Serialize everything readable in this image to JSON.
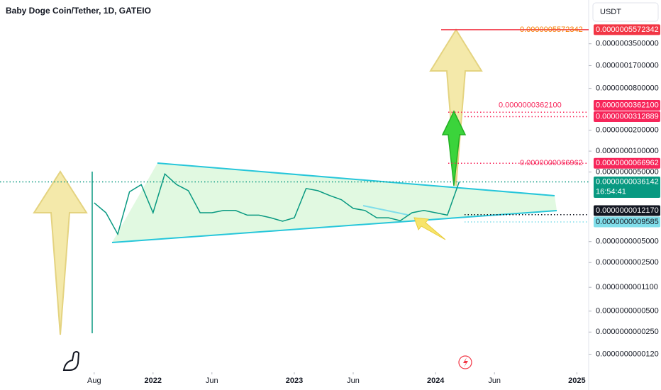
{
  "chart_data": {
    "type": "line",
    "title": "Baby Doge Coin/Tether, 1D, GATEIO",
    "currency": "USDT",
    "countdown": "16:54:41",
    "log_scale": true,
    "grid": false,
    "color": "#089981",
    "x": [
      "2021-08",
      "2021-09",
      "2021-10",
      "2021-11",
      "2021-12",
      "2022-01",
      "2022-02",
      "2022-03",
      "2022-04",
      "2022-05",
      "2022-06",
      "2022-07",
      "2022-08",
      "2022-09",
      "2022-10",
      "2022-11",
      "2022-12",
      "2023-01",
      "2023-02",
      "2023-03",
      "2023-04",
      "2023-05",
      "2023-06",
      "2023-07",
      "2023-08",
      "2023-09",
      "2023-10",
      "2023-11",
      "2023-12",
      "2024-01",
      "2024-02",
      "2024-03"
    ],
    "values": [
      1.8e-09,
      1.3e-09,
      6.4e-10,
      2.6e-09,
      3.3e-09,
      1.3e-09,
      4.7e-09,
      3.3e-09,
      2.7e-09,
      1.3e-09,
      1.3e-09,
      1.4e-09,
      1.4e-09,
      1.2e-09,
      1.2e-09,
      1.1e-09,
      9.8e-10,
      1.1e-09,
      2.9e-09,
      2.7e-09,
      2.3e-09,
      2e-09,
      1.5e-09,
      1.4e-09,
      1.1e-09,
      1.1e-09,
      1e-09,
      1.3e-09,
      1.4e-09,
      1.3e-09,
      1.2e-09,
      3.6142e-09
    ],
    "xlim": [
      "2020-12",
      "2025-02"
    ],
    "xticks": [
      {
        "value": "2021-08",
        "label": "Aug"
      },
      {
        "value": "2022-01",
        "label": "2022"
      },
      {
        "value": "2022-06",
        "label": "Jun"
      },
      {
        "value": "2023-01",
        "label": "2023"
      },
      {
        "value": "2023-06",
        "label": "Jun"
      },
      {
        "value": "2024-01",
        "label": "2024"
      },
      {
        "value": "2024-06",
        "label": "Jun"
      },
      {
        "value": "2025-01",
        "label": "2025"
      }
    ],
    "ylim": [
      6.6e-12,
      1.49e-06
    ],
    "yticks": [
      {
        "value": 3.5e-07,
        "label": "0.0000003500000"
      },
      {
        "value": 1.7e-07,
        "label": "0.0000001700000"
      },
      {
        "value": 8e-08,
        "label": "0.0000000800000"
      },
      {
        "value": 2e-08,
        "label": "0.0000000200000"
      },
      {
        "value": 1e-08,
        "label": "0.0000000100000"
      },
      {
        "value": 5e-09,
        "label": "0.0000000050000"
      },
      {
        "value": 5e-10,
        "label": "0.0000000005000"
      },
      {
        "value": 2.5e-10,
        "label": "0.0000000002500"
      },
      {
        "value": 1.1e-10,
        "label": "0.0000000001100"
      },
      {
        "value": 5e-11,
        "label": "0.0000000000500"
      },
      {
        "value": 2.5e-11,
        "label": "0.0000000000250"
      },
      {
        "value": 1.2e-11,
        "label": "0.0000000000120"
      }
    ],
    "price_lines": [
      {
        "value": 5.572342e-07,
        "label": "0.0000005572342",
        "color": "#f23645",
        "text_color": "#ffffff",
        "style": "solid",
        "note_color": "#f57c00"
      },
      {
        "value": 3.621e-08,
        "label": "0.0000000362100",
        "color": "#f7265a",
        "text_color": "#ffffff",
        "style": "dotted",
        "note_color": "#f7265a"
      },
      {
        "value": 3.12889e-08,
        "label": "0.0000000312889",
        "color": "#f7265a",
        "text_color": "#ffffff",
        "style": "dotted"
      },
      {
        "value": 6.6962e-09,
        "label": "0.0000000066962",
        "color": "#f7265a",
        "text_color": "#ffffff",
        "style": "dotted",
        "note_color": "#f7265a"
      },
      {
        "value": 3.6142e-09,
        "label": "0.0000000036142",
        "color": "#089981",
        "text_color": "#ffffff",
        "style": "dotted"
      },
      {
        "value": 1.217e-09,
        "label": "0.0000000012170",
        "color": "#131722",
        "text_color": "#ffffff",
        "style": "dotted"
      },
      {
        "value": 9.585e-10,
        "label": "0.0000000009585",
        "color": "#80deea",
        "text_color": "#131722",
        "style": "dotted"
      }
    ]
  }
}
